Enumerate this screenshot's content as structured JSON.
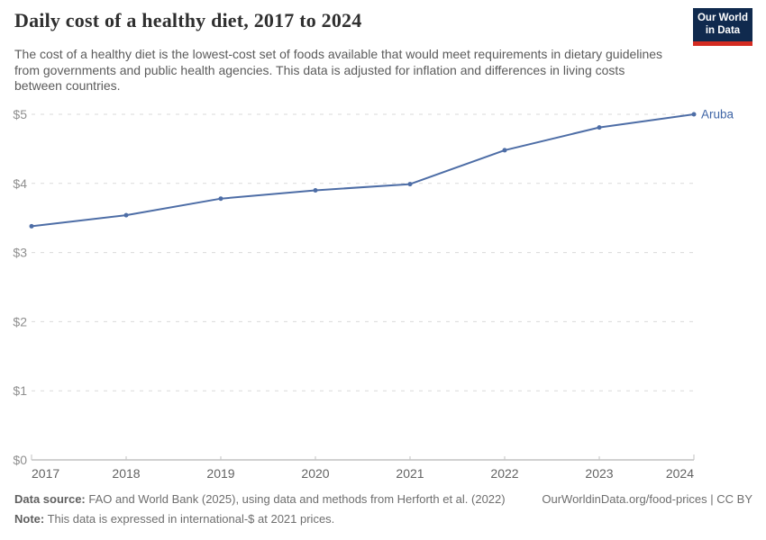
{
  "header": {
    "title": "Daily cost of a healthy diet, 2017 to 2024",
    "subtitle": "The cost of a healthy diet is the lowest-cost set of foods available that would meet requirements in dietary guidelines from governments and public health agencies. This data is adjusted for inflation and differences in living costs between countries.",
    "logo": {
      "line1": "Our World",
      "line2": "in Data",
      "bg_color": "#102a4e",
      "accent_color": "#d42b21"
    }
  },
  "chart_data": {
    "type": "line",
    "x": [
      2017,
      2018,
      2019,
      2020,
      2021,
      2022,
      2023,
      2024
    ],
    "series": [
      {
        "name": "Aruba",
        "values": [
          3.38,
          3.54,
          3.78,
          3.9,
          3.99,
          4.48,
          4.81,
          5.0
        ]
      }
    ],
    "title": "Daily cost of a healthy diet, 2017 to 2024",
    "xlabel": "",
    "ylabel": "",
    "ylim": [
      0,
      5
    ],
    "yticks": [
      0,
      1,
      2,
      3,
      4,
      5
    ],
    "ytick_prefix": "$",
    "grid": "horizontal-dashed",
    "legend_position": "end-of-line-label",
    "end_label": "Aruba"
  },
  "colors": {
    "line": "#4d6da6",
    "point": "#4d6da6",
    "end_label": "#3f65a6",
    "grid": "#dadada",
    "axis": "#a3a3a3",
    "tick": "#c2c2c2",
    "y_label": "#8f8f8f",
    "x_label": "#636363"
  },
  "footer": {
    "source_label": "Data source:",
    "source_text": "FAO and World Bank (2025), using data and methods from Herforth et al. (2022)",
    "note_label": "Note:",
    "note_text": "This data is expressed in international-$ at 2021 prices.",
    "right_text": "OurWorldinData.org/food-prices | CC BY"
  }
}
